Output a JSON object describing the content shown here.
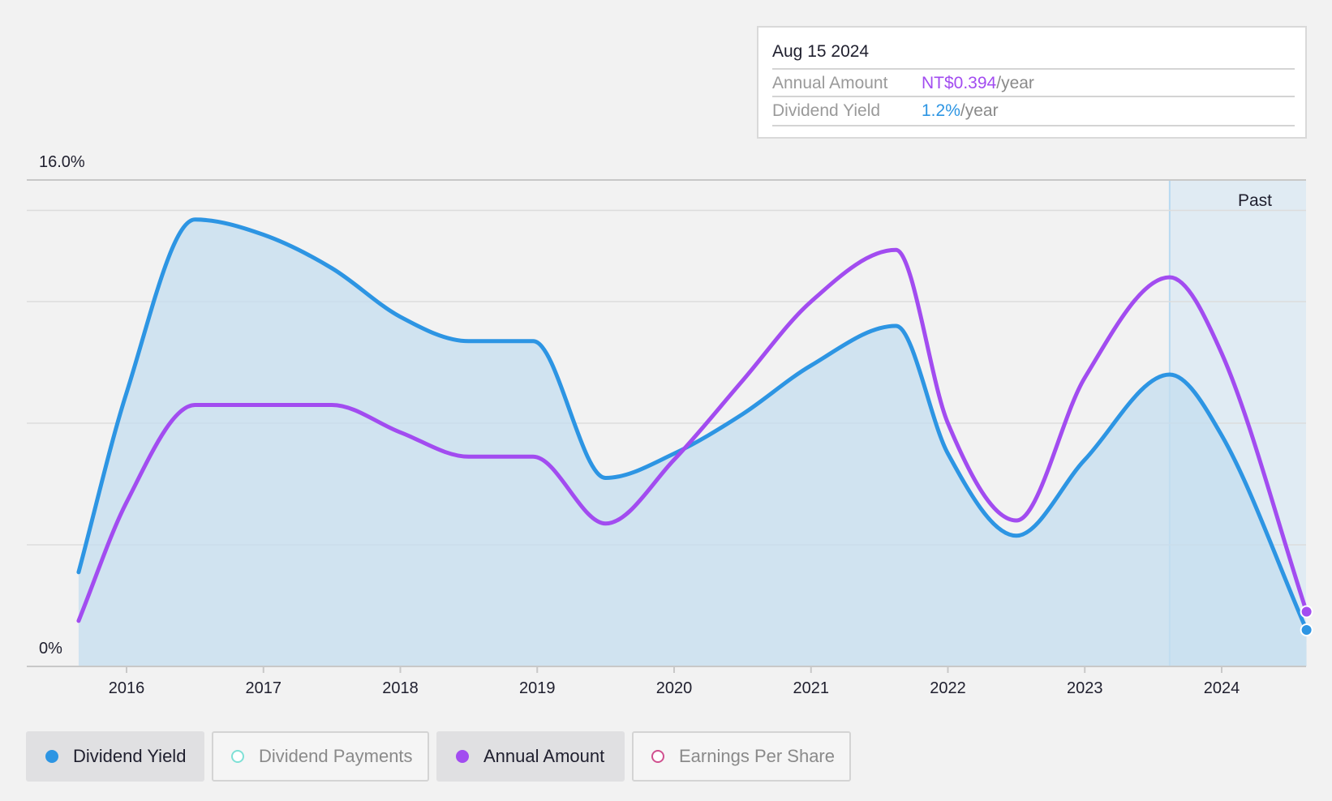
{
  "tooltip": {
    "date": "Aug 15 2024",
    "annual_label": "Annual Amount",
    "annual_value": "NT$0.394",
    "annual_unit": "/year",
    "yield_label": "Dividend Yield",
    "yield_value": "1.2%",
    "yield_unit": "/year"
  },
  "colors": {
    "yield": "#2d95e3",
    "annual": "#a24cf0",
    "payments": "#7fe0d6",
    "eps": "#d0508f",
    "area": "#c4ddef"
  },
  "legend": [
    {
      "label": "Dividend Yield",
      "active": true,
      "color": "#2d95e3"
    },
    {
      "label": "Dividend Payments",
      "active": false,
      "color": "#7fe0d6"
    },
    {
      "label": "Annual Amount",
      "active": true,
      "color": "#a24cf0"
    },
    {
      "label": "Earnings Per Share",
      "active": false,
      "color": "#d0508f"
    }
  ],
  "chart_data": {
    "type": "line",
    "y_top_label": "16.0%",
    "y_bottom_label": "0%",
    "ylim": [
      0,
      16
    ],
    "y_unit": "%",
    "x_ticks": [
      "2016",
      "2017",
      "2018",
      "2019",
      "2020",
      "2021",
      "2022",
      "2023",
      "2024"
    ],
    "past_label": "Past",
    "past_start": 2023.62,
    "grid": true,
    "series": [
      {
        "name": "Dividend Yield",
        "key": "yield",
        "area": true,
        "points": [
          [
            2015.65,
            3.1
          ],
          [
            2016.0,
            9.0
          ],
          [
            2016.5,
            14.7
          ],
          [
            2017.0,
            14.2
          ],
          [
            2017.5,
            13.1
          ],
          [
            2018.0,
            11.5
          ],
          [
            2018.5,
            10.7
          ],
          [
            2018.97,
            10.7
          ],
          [
            2019.5,
            6.2
          ],
          [
            2020.0,
            7.0
          ],
          [
            2020.5,
            8.3
          ],
          [
            2021.0,
            9.9
          ],
          [
            2021.62,
            11.2
          ],
          [
            2022.0,
            7.0
          ],
          [
            2022.5,
            4.3
          ],
          [
            2023.0,
            6.8
          ],
          [
            2023.62,
            9.6
          ],
          [
            2024.0,
            7.6
          ],
          [
            2024.62,
            1.2
          ]
        ]
      },
      {
        "name": "Annual Amount",
        "key": "annual",
        "area": false,
        "points": [
          [
            2015.65,
            1.5
          ],
          [
            2016.0,
            5.4
          ],
          [
            2016.5,
            8.6
          ],
          [
            2017.0,
            8.6
          ],
          [
            2017.5,
            8.6
          ],
          [
            2018.0,
            7.7
          ],
          [
            2018.5,
            6.9
          ],
          [
            2018.97,
            6.9
          ],
          [
            2019.5,
            4.7
          ],
          [
            2020.0,
            6.8
          ],
          [
            2020.5,
            9.4
          ],
          [
            2021.0,
            12.0
          ],
          [
            2021.62,
            13.7
          ],
          [
            2022.0,
            8.0
          ],
          [
            2022.5,
            4.8
          ],
          [
            2023.0,
            9.5
          ],
          [
            2023.62,
            12.8
          ],
          [
            2024.0,
            10.3
          ],
          [
            2024.62,
            1.8
          ]
        ]
      }
    ]
  }
}
